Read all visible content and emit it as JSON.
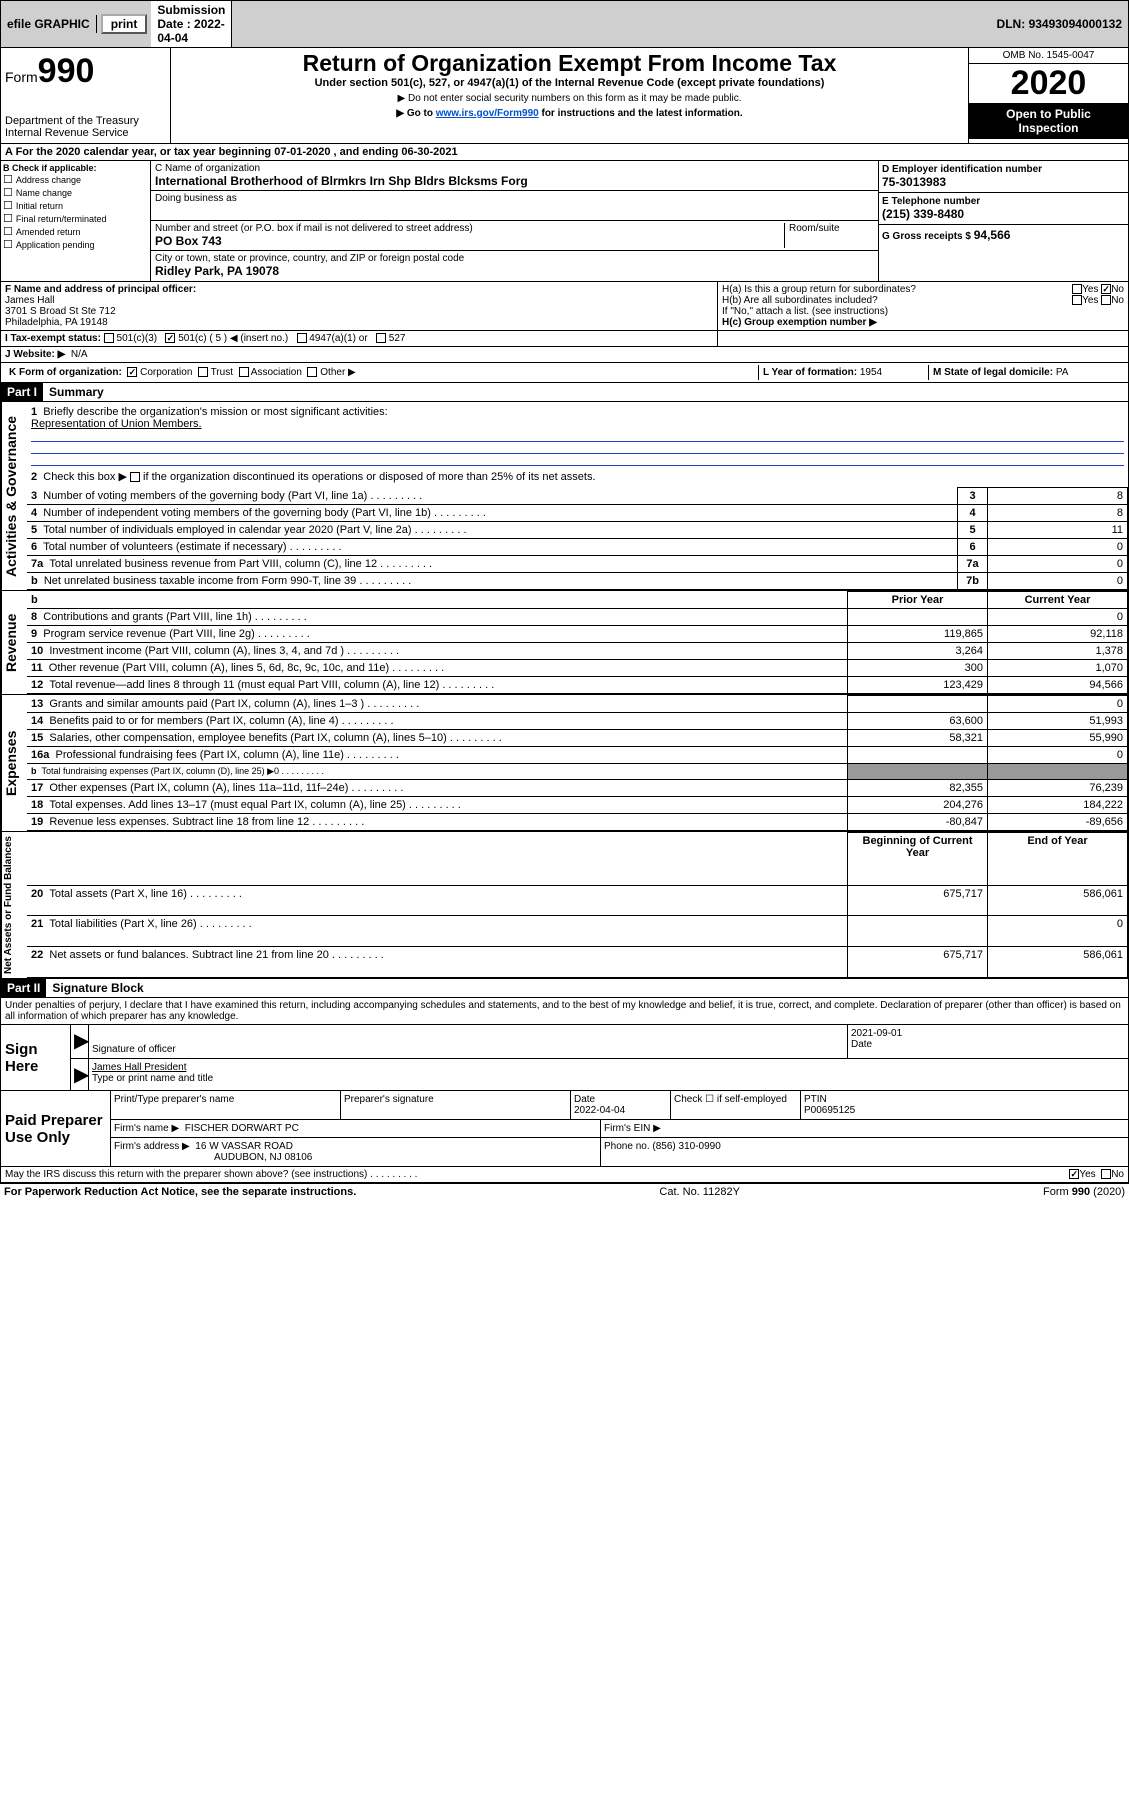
{
  "top": {
    "efile": "efile GRAPHIC",
    "print": "print",
    "subdate_label": "Submission Date :",
    "subdate": "2022-04-04",
    "dln_label": "DLN:",
    "dln": "93493094000132"
  },
  "hdr": {
    "form_word": "Form",
    "form_num": "990",
    "dept": "Department of the Treasury",
    "irs": "Internal Revenue Service",
    "title": "Return of Organization Exempt From Income Tax",
    "sub1": "Under section 501(c), 527, or 4947(a)(1) of the Internal Revenue Code (except private foundations)",
    "sub2": "▶ Do not enter social security numbers on this form as it may be made public.",
    "sub3_pre": "▶ Go to ",
    "sub3_link": "www.irs.gov/Form990",
    "sub3_post": " for instructions and the latest information.",
    "omb": "OMB No. 1545-0047",
    "year": "2020",
    "insp1": "Open to Public",
    "insp2": "Inspection"
  },
  "A": "A For the 2020 calendar year, or tax year beginning 07-01-2020    , and ending 06-30-2021",
  "B": {
    "hdr": "B Check if applicable:",
    "items": [
      "Address change",
      "Name change",
      "Initial return",
      "Final return/terminated",
      "Amended return",
      "Application pending"
    ]
  },
  "C": {
    "name_lbl": "C Name of organization",
    "name": "International Brotherhood of Blrmkrs Irn Shp Bldrs Blcksms Forg",
    "dba_lbl": "Doing business as",
    "addr_lbl": "Number and street (or P.O. box if mail is not delivered to street address)",
    "room_lbl": "Room/suite",
    "addr": "PO Box 743",
    "city_lbl": "City or town, state or province, country, and ZIP or foreign postal code",
    "city": "Ridley Park, PA  19078"
  },
  "D": {
    "ein_lbl": "D Employer identification number",
    "ein": "75-3013983",
    "tel_lbl": "E Telephone number",
    "tel": "(215) 339-8480",
    "gross_lbl": "G Gross receipts $",
    "gross": "94,566"
  },
  "F": {
    "lbl": "F  Name and address of principal officer:",
    "name": "James Hall",
    "a1": "3701 S Broad St Ste 712",
    "a2": "Philadelphia, PA  19148"
  },
  "H": {
    "a": "H(a)  Is this a group return for subordinates?",
    "b": "H(b)  Are all subordinates included?",
    "b2": "If \"No,\" attach a list. (see instructions)",
    "c": "H(c)  Group exemption number ▶"
  },
  "I": {
    "lbl": "I    Tax-exempt status:",
    "o1": "501(c)(3)",
    "o2": "501(c) ( 5 ) ◀ (insert no.)",
    "o3": "4947(a)(1) or",
    "o4": "527"
  },
  "J": {
    "lbl": "J   Website: ▶",
    "val": "N/A"
  },
  "K": {
    "lbl": "K Form of organization:",
    "o": [
      "Corporation",
      "Trust",
      "Association",
      "Other ▶"
    ]
  },
  "L": {
    "lbl": "L Year of formation:",
    "val": "1954"
  },
  "M": {
    "lbl": "M State of legal domicile:",
    "val": "PA"
  },
  "part1": {
    "num": "Part I",
    "title": "Summary"
  },
  "s1": {
    "q1": "Briefly describe the organization's mission or most significant activities:",
    "a1": "Representation of Union Members.",
    "q2pre": "Check this box ▶",
    "q2post": " if the organization discontinued its operations or disposed of more than 25% of its net assets."
  },
  "sectA": {
    "label": "Activities & Governance",
    "rows": [
      {
        "n": "3",
        "t": "Number of voting members of the governing body (Part VI, line 1a)",
        "v": "8"
      },
      {
        "n": "4",
        "t": "Number of independent voting members of the governing body (Part VI, line 1b)",
        "v": "8"
      },
      {
        "n": "5",
        "t": "Total number of individuals employed in calendar year 2020 (Part V, line 2a)",
        "v": "11"
      },
      {
        "n": "6",
        "t": "Total number of volunteers (estimate if necessary)",
        "v": "0"
      },
      {
        "n": "7a",
        "t": "Total unrelated business revenue from Part VIII, column (C), line 12",
        "v": "0"
      },
      {
        "n": "b",
        "t": "Net unrelated business taxable income from Form 990-T, line 39",
        "bn": "7b",
        "v": "0"
      }
    ]
  },
  "twoColHdr": {
    "py": "Prior Year",
    "cy": "Current Year"
  },
  "sectR": {
    "label": "Revenue",
    "rows": [
      {
        "n": "8",
        "t": "Contributions and grants (Part VIII, line 1h)",
        "py": "",
        "cy": "0"
      },
      {
        "n": "9",
        "t": "Program service revenue (Part VIII, line 2g)",
        "py": "119,865",
        "cy": "92,118"
      },
      {
        "n": "10",
        "t": "Investment income (Part VIII, column (A), lines 3, 4, and 7d )",
        "py": "3,264",
        "cy": "1,378"
      },
      {
        "n": "11",
        "t": "Other revenue (Part VIII, column (A), lines 5, 6d, 8c, 9c, 10c, and 11e)",
        "py": "300",
        "cy": "1,070"
      },
      {
        "n": "12",
        "t": "Total revenue—add lines 8 through 11 (must equal Part VIII, column (A), line 12)",
        "py": "123,429",
        "cy": "94,566"
      }
    ]
  },
  "sectE": {
    "label": "Expenses",
    "rows": [
      {
        "n": "13",
        "t": "Grants and similar amounts paid (Part IX, column (A), lines 1–3 )",
        "py": "",
        "cy": "0"
      },
      {
        "n": "14",
        "t": "Benefits paid to or for members (Part IX, column (A), line 4)",
        "py": "63,600",
        "cy": "51,993"
      },
      {
        "n": "15",
        "t": "Salaries, other compensation, employee benefits (Part IX, column (A), lines 5–10)",
        "py": "58,321",
        "cy": "55,990"
      },
      {
        "n": "16a",
        "t": "Professional fundraising fees (Part IX, column (A), line 11e)",
        "py": "",
        "cy": "0"
      },
      {
        "n": "b",
        "t": "Total fundraising expenses (Part IX, column (D), line 25) ▶0",
        "py": "SHADE",
        "cy": "SHADE",
        "sml": true
      },
      {
        "n": "17",
        "t": "Other expenses (Part IX, column (A), lines 11a–11d, 11f–24e)",
        "py": "82,355",
        "cy": "76,239"
      },
      {
        "n": "18",
        "t": "Total expenses. Add lines 13–17 (must equal Part IX, column (A), line 25)",
        "py": "204,276",
        "cy": "184,222"
      },
      {
        "n": "19",
        "t": "Revenue less expenses. Subtract line 18 from line 12",
        "py": "-80,847",
        "cy": "-89,656"
      }
    ]
  },
  "twoColHdr2": {
    "py": "Beginning of Current Year",
    "cy": "End of Year"
  },
  "sectN": {
    "label": "Net Assets or Fund Balances",
    "rows": [
      {
        "n": "20",
        "t": "Total assets (Part X, line 16)",
        "py": "675,717",
        "cy": "586,061"
      },
      {
        "n": "21",
        "t": "Total liabilities (Part X, line 26)",
        "py": "",
        "cy": "0"
      },
      {
        "n": "22",
        "t": "Net assets or fund balances. Subtract line 21 from line 20",
        "py": "675,717",
        "cy": "586,061"
      }
    ]
  },
  "part2": {
    "num": "Part II",
    "title": "Signature Block"
  },
  "penalty": "Under penalties of perjury, I declare that I have examined this return, including accompanying schedules and statements, and to the best of my knowledge and belief, it is true, correct, and complete. Declaration of preparer (other than officer) is based on all information of which preparer has any knowledge.",
  "sign": {
    "here": "Sign Here",
    "sig_lbl": "Signature of officer",
    "date_lbl": "Date",
    "date": "2021-09-01",
    "name": "James Hall President",
    "name_lbl": "Type or print name and title"
  },
  "paid": {
    "here": "Paid Preparer Use Only",
    "pt_lbl": "Print/Type preparer's name",
    "ps_lbl": "Preparer's signature",
    "d_lbl": "Date",
    "d": "2022-04-04",
    "se_lbl": "Check ☐ if self-employed",
    "ptin_lbl": "PTIN",
    "ptin": "P00695125",
    "firm_lbl": "Firm's name    ▶",
    "firm": "FISCHER DORWART PC",
    "ein_lbl": "Firm's EIN ▶",
    "addr_lbl": "Firm's address ▶",
    "addr1": "16 W VASSAR ROAD",
    "addr2": "AUDUBON, NJ  08106",
    "ph_lbl": "Phone no.",
    "ph": "(856) 310-0990"
  },
  "discuss": "May the IRS discuss this return with the preparer shown above? (see instructions)",
  "footer": {
    "l": "For Paperwork Reduction Act Notice, see the separate instructions.",
    "m": "Cat. No. 11282Y",
    "r": "Form 990 (2020)"
  },
  "yn": {
    "yes": "Yes",
    "no": "No"
  }
}
